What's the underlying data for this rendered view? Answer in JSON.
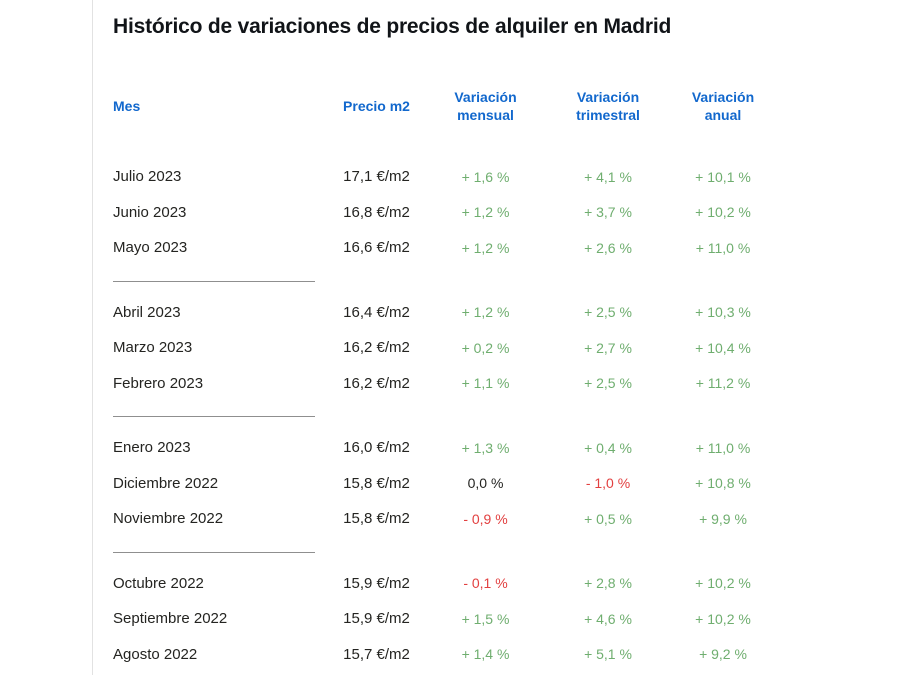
{
  "page": {
    "title": "Histórico de variaciones de precios de alquiler en Madrid"
  },
  "colors": {
    "accent_blue": "#1268cd",
    "positive_green": "#6fae6f",
    "negative_red": "#e24040",
    "text_dark": "#242421",
    "title_dark": "#111418",
    "divider_gray": "#8f8f8f",
    "border_light": "#e2e2e2",
    "background": "#ffffff"
  },
  "chart_data": {
    "type": "table",
    "title": "Histórico de variaciones de precios de alquiler en Madrid",
    "columns": [
      "Mes",
      "Precio m2",
      "Variación mensual",
      "Variación trimestral",
      "Variación anual"
    ],
    "rows": [
      [
        "Julio 2023",
        "17,1 €/m2",
        "+ 1,6 %",
        "+ 4,1 %",
        "+ 10,1 %"
      ],
      [
        "Junio 2023",
        "16,8 €/m2",
        "+ 1,2 %",
        "+ 3,7 %",
        "+ 10,2 %"
      ],
      [
        "Mayo 2023",
        "16,6 €/m2",
        "+ 1,2 %",
        "+ 2,6 %",
        "+ 11,0 %"
      ],
      [
        "Abril 2023",
        "16,4 €/m2",
        "+ 1,2 %",
        "+ 2,5 %",
        "+ 10,3 %"
      ],
      [
        "Marzo 2023",
        "16,2 €/m2",
        "+ 0,2 %",
        "+ 2,7 %",
        "+ 10,4 %"
      ],
      [
        "Febrero 2023",
        "16,2 €/m2",
        "+ 1,1 %",
        "+ 2,5 %",
        "+ 11,2 %"
      ],
      [
        "Enero 2023",
        "16,0 €/m2",
        "+ 1,3 %",
        "+ 0,4 %",
        "+ 11,0 %"
      ],
      [
        "Diciembre 2022",
        "15,8 €/m2",
        "0,0 %",
        "- 1,0 %",
        "+ 10,8 %"
      ],
      [
        "Noviembre 2022",
        "15,8 €/m2",
        "- 0,9 %",
        "+ 0,5 %",
        "+ 9,9 %"
      ],
      [
        "Octubre 2022",
        "15,9 €/m2",
        "- 0,1 %",
        "+ 2,8 %",
        "+ 10,2 %"
      ],
      [
        "Septiembre 2022",
        "15,9 €/m2",
        "+ 1,5 %",
        "+ 4,6 %",
        "+ 10,2 %"
      ],
      [
        "Agosto 2022",
        "15,7 €/m2",
        "+ 1,4 %",
        "+ 5,1 %",
        "+ 9,2 %"
      ]
    ],
    "group_separators_after_rows": [
      3,
      6,
      9
    ],
    "value_color_rule": "values starting with + are green, with - are red, otherwise dark",
    "layout": {
      "grid": false,
      "legend": "none"
    }
  }
}
